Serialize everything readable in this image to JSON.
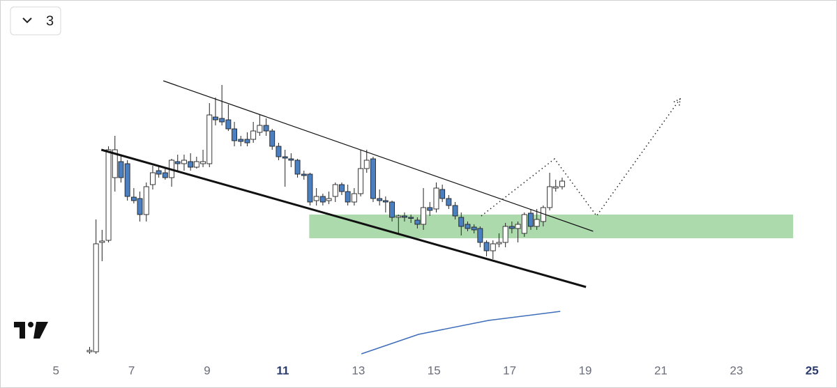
{
  "toolbar": {
    "interval_button": "3"
  },
  "chart_data": {
    "type": "candlestick",
    "x": [
      5.89,
      6.06,
      6.22,
      6.39,
      6.56,
      6.72,
      6.89,
      7.06,
      7.22,
      7.39,
      7.56,
      7.72,
      7.89,
      8.06,
      8.22,
      8.39,
      8.56,
      8.72,
      8.89,
      9.06,
      9.22,
      9.39,
      9.56,
      9.72,
      9.89,
      10.06,
      10.22,
      10.39,
      10.56,
      10.72,
      10.89,
      11.06,
      11.22,
      11.39,
      11.56,
      11.72,
      11.89,
      12.06,
      12.22,
      12.39,
      12.56,
      12.72,
      12.89,
      13.06,
      13.22,
      13.39,
      13.56,
      13.72,
      13.89,
      14.06,
      14.22,
      14.39,
      14.56,
      14.72,
      14.89,
      15.06,
      15.22,
      15.39,
      15.56,
      15.72,
      15.89,
      16.06,
      16.22,
      16.39,
      16.56,
      16.72,
      16.89,
      17.06,
      17.22,
      17.39,
      17.56,
      17.72,
      17.89,
      18.06,
      18.22,
      18.39
    ],
    "open": [
      15,
      15,
      172,
      175,
      265,
      288,
      285,
      237,
      235,
      212,
      255,
      275,
      272,
      265,
      288,
      285,
      288,
      280,
      285,
      285,
      352,
      350,
      348,
      335,
      320,
      320,
      320,
      330,
      340,
      332,
      310,
      295,
      292,
      290,
      270,
      270,
      232,
      238,
      232,
      238,
      255,
      245,
      230,
      242,
      278,
      292,
      235,
      232,
      230,
      208,
      210,
      208,
      204,
      198,
      222,
      220,
      248,
      235,
      225,
      208,
      198,
      194,
      192,
      172,
      160,
      170,
      172,
      195,
      192,
      185,
      214,
      195,
      202,
      222,
      250,
      252
    ],
    "high": [
      22,
      205,
      190,
      310,
      325,
      298,
      290,
      250,
      245,
      258,
      282,
      282,
      280,
      292,
      298,
      298,
      300,
      295,
      305,
      372,
      380,
      398,
      370,
      345,
      325,
      330,
      345,
      355,
      350,
      335,
      315,
      305,
      300,
      292,
      275,
      272,
      250,
      242,
      245,
      258,
      258,
      255,
      250,
      305,
      305,
      295,
      248,
      238,
      232,
      212,
      215,
      212,
      208,
      250,
      230,
      258,
      255,
      240,
      230,
      215,
      202,
      198,
      195,
      175,
      175,
      185,
      200,
      202,
      202,
      215,
      220,
      220,
      225,
      272,
      262,
      265
    ],
    "low": [
      12,
      12,
      145,
      172,
      245,
      258,
      232,
      228,
      202,
      202,
      248,
      265,
      262,
      252,
      275,
      275,
      275,
      278,
      280,
      280,
      340,
      340,
      332,
      310,
      310,
      310,
      315,
      325,
      325,
      305,
      290,
      252,
      280,
      265,
      262,
      225,
      225,
      225,
      227,
      230,
      240,
      225,
      225,
      238,
      272,
      230,
      225,
      215,
      202,
      185,
      202,
      200,
      192,
      190,
      210,
      215,
      230,
      220,
      205,
      182,
      188,
      185,
      165,
      152,
      148,
      165,
      165,
      185,
      172,
      180,
      190,
      190,
      195,
      218,
      245,
      248
    ],
    "close": [
      17,
      170,
      174,
      305,
      305,
      265,
      238,
      232,
      212,
      252,
      272,
      270,
      265,
      290,
      285,
      290,
      280,
      288,
      288,
      355,
      348,
      345,
      335,
      318,
      317,
      315,
      332,
      340,
      332,
      310,
      295,
      293,
      290,
      270,
      268,
      230,
      238,
      230,
      235,
      255,
      245,
      230,
      242,
      278,
      290,
      235,
      232,
      230,
      208,
      210,
      208,
      207,
      198,
      222,
      218,
      250,
      235,
      225,
      210,
      195,
      192,
      190,
      172,
      160,
      170,
      172,
      195,
      192,
      198,
      212,
      195,
      205,
      222,
      252,
      252,
      260
    ],
    "up_color": "#ffffff",
    "down_color": "#4a7fc1",
    "wick_color": "#222222",
    "xlim": [
      3.52,
      25.66
    ],
    "ylim": [
      0,
      520
    ],
    "xticks": [
      5,
      7,
      9,
      11,
      13,
      15,
      17,
      19,
      21,
      23,
      25
    ],
    "zone": {
      "x": [
        11.7,
        24.5
      ],
      "y": [
        178,
        212
      ],
      "color": "#a8d8a8"
    },
    "trendlines": [
      {
        "x": [
          7.84,
          19.21
        ],
        "y": [
          404,
          188
        ],
        "width": 1.2
      },
      {
        "x": [
          6.2,
          19.02
        ],
        "y": [
          305,
          108
        ],
        "width": 3
      }
    ],
    "projection": {
      "x": [
        16.25,
        18.19,
        19.3,
        21.51
      ],
      "y": [
        210,
        292,
        210,
        378
      ]
    },
    "moving_average": {
      "x": [
        13.08,
        14.59,
        16.44,
        18.34
      ],
      "values": [
        12,
        40,
        60,
        73
      ],
      "color": "#3d6cb9"
    }
  }
}
